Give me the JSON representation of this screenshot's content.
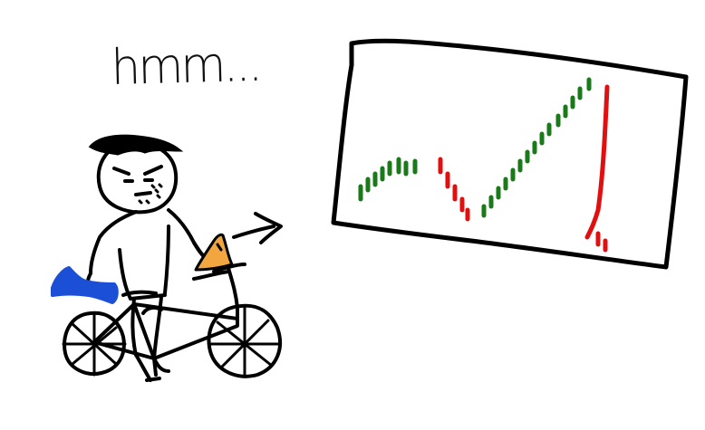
{
  "thought_text": "hmm...",
  "colors": {
    "ink": "#000000",
    "candle_up": "#1a7a1a",
    "candle_down": "#e01010",
    "shoe": "#1a4fd6",
    "phone": "#f2a640",
    "background": "#ffffff"
  },
  "characters": {
    "person": "doodle-man",
    "vehicle": "bicycle",
    "device": "phone",
    "screen": "price-chart"
  }
}
